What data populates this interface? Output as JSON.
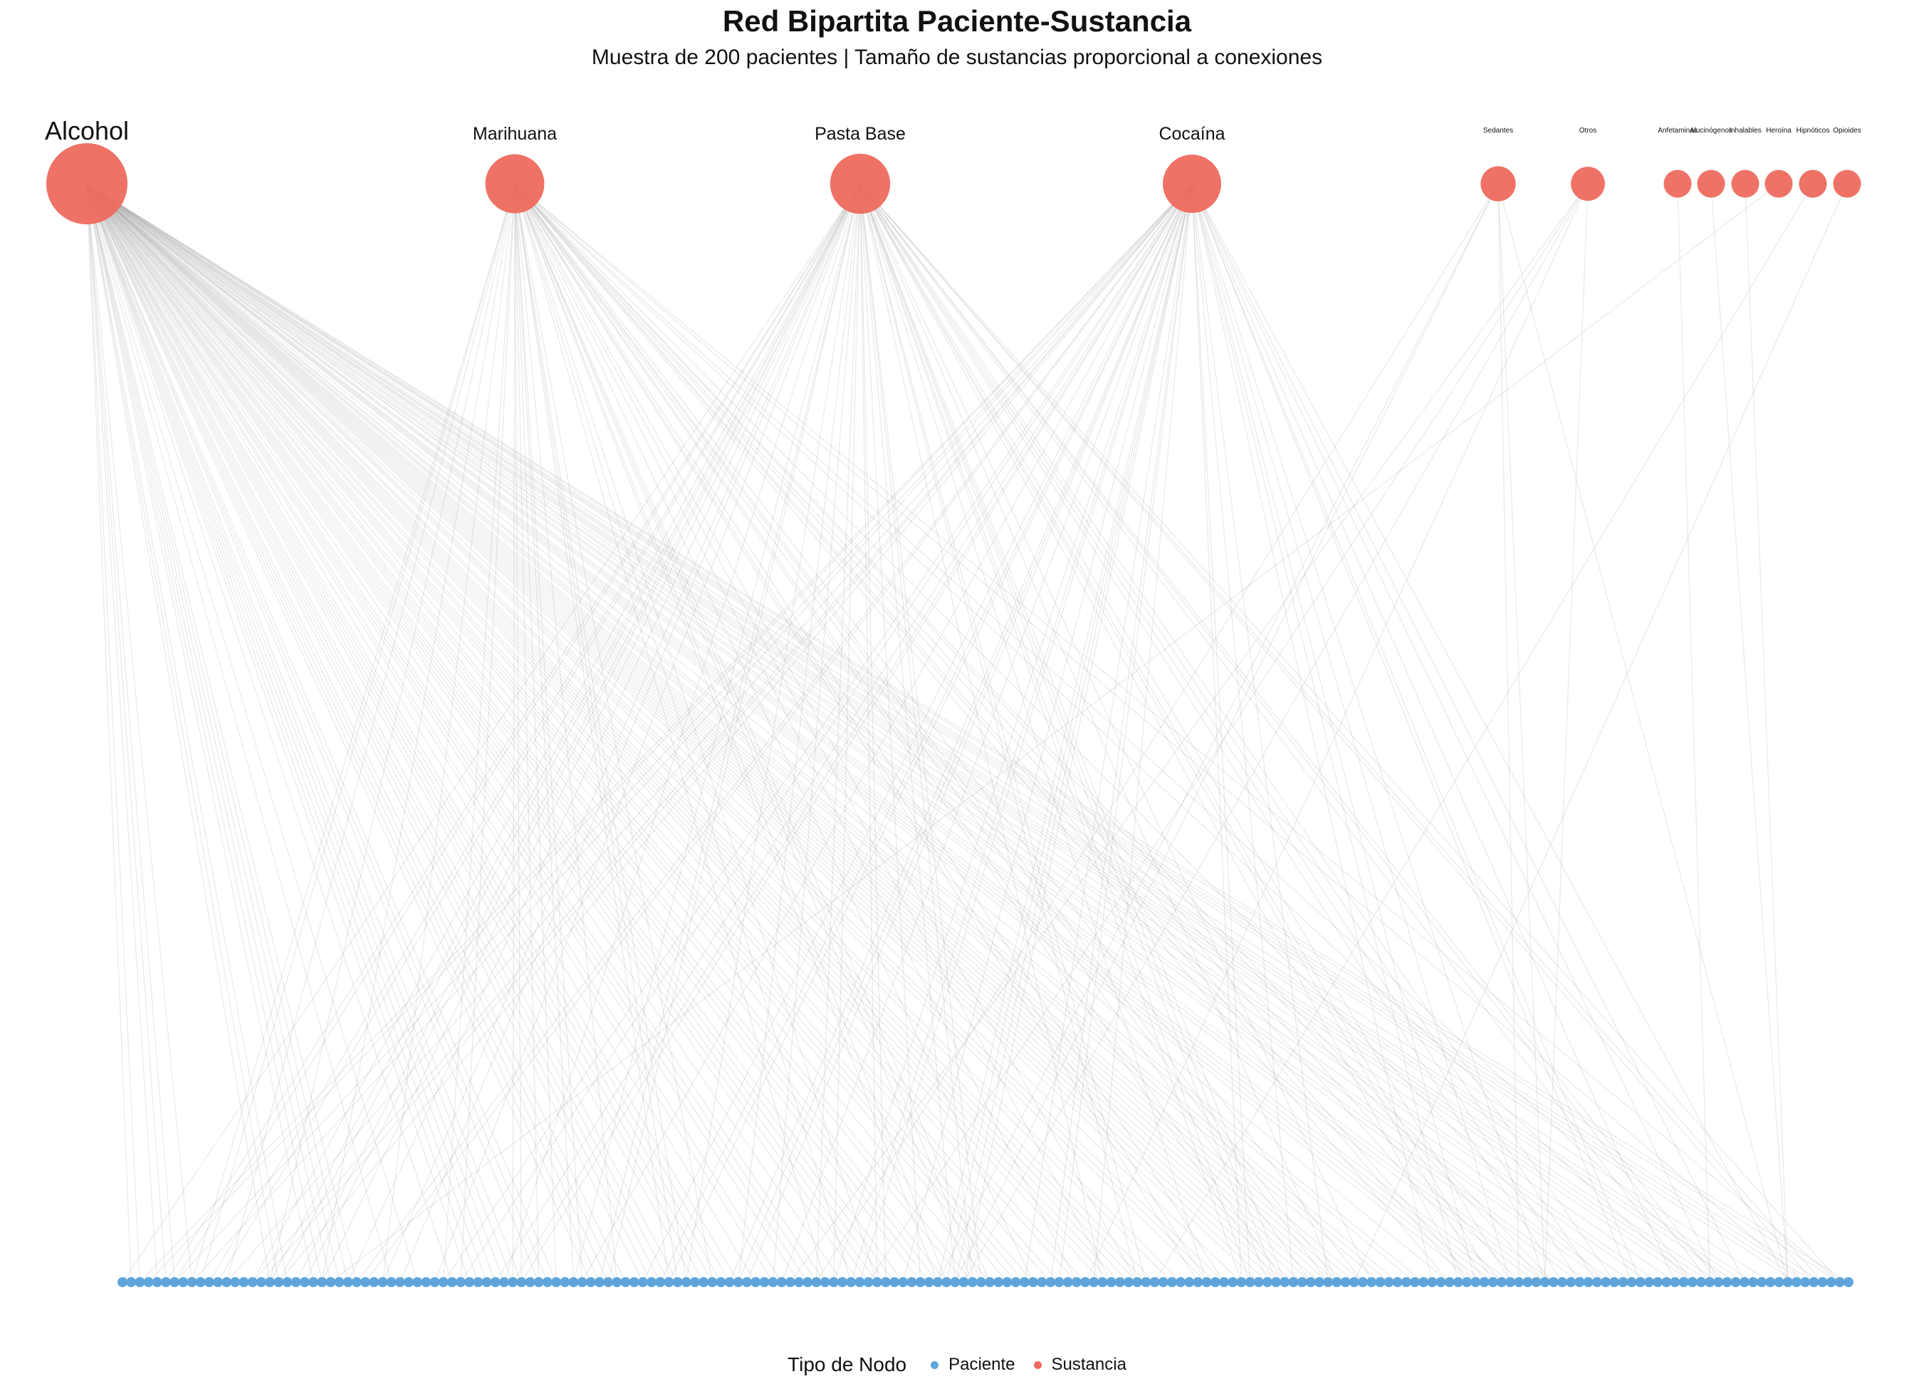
{
  "title": "Red Bipartita Paciente-Sustancia",
  "subtitle": "Muestra de 200 pacientes | Tamaño de sustancias proporcional a conexiones",
  "colors": {
    "paciente": "#5DA5DA",
    "sustancia": "#EE6A5E",
    "edge": "#9E9E9E"
  },
  "substances": [
    {
      "name": "Alcohol",
      "connections": 135
    },
    {
      "name": "Marihuana",
      "connections": 52
    },
    {
      "name": "Pasta Base",
      "connections": 55
    },
    {
      "name": "Cocaína",
      "connections": 50
    },
    {
      "name": "Sedantes",
      "connections": 6
    },
    {
      "name": "Otros",
      "connections": 5
    },
    {
      "name": "Anfetaminas",
      "connections": 1
    },
    {
      "name": "Alucinógenos",
      "connections": 1
    },
    {
      "name": "Inhalables",
      "connections": 1
    },
    {
      "name": "Heroína",
      "connections": 1
    },
    {
      "name": "Hipnóticos",
      "connections": 1
    },
    {
      "name": "Opioides",
      "connections": 1
    }
  ],
  "patients_count": 200,
  "legend": {
    "title": "Tipo de Nodo",
    "items": [
      {
        "label": "Paciente",
        "color": "#5DA5DA"
      },
      {
        "label": "Sustancia",
        "color": "#EE6A5E"
      }
    ]
  }
}
